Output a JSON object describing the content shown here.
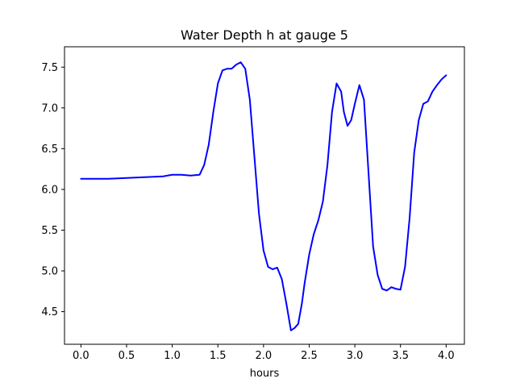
{
  "chart_data": {
    "type": "line",
    "title": "Water Depth h at gauge 5",
    "xlabel": "hours",
    "ylabel": "",
    "xlim": [
      -0.18,
      4.2
    ],
    "ylim": [
      4.1,
      7.75
    ],
    "xticks": [
      0.0,
      0.5,
      1.0,
      1.5,
      2.0,
      2.5,
      3.0,
      3.5,
      4.0
    ],
    "xtick_labels": [
      "0.0",
      "0.5",
      "1.0",
      "1.5",
      "2.0",
      "2.5",
      "3.0",
      "3.5",
      "4.0"
    ],
    "yticks": [
      4.5,
      5.0,
      5.5,
      6.0,
      6.5,
      7.0,
      7.5
    ],
    "ytick_labels": [
      "4.5",
      "5.0",
      "5.5",
      "6.0",
      "6.5",
      "7.0",
      "7.5"
    ],
    "grid": false,
    "line_color": "#0000ff",
    "series": [
      {
        "x": [
          0.0,
          0.3,
          0.5,
          0.7,
          0.9,
          1.0,
          1.1,
          1.2,
          1.3,
          1.35,
          1.4,
          1.45,
          1.5,
          1.55,
          1.6,
          1.65,
          1.7,
          1.75,
          1.8,
          1.85,
          1.9,
          1.95,
          2.0,
          2.05,
          2.1,
          2.15,
          2.2,
          2.25,
          2.3,
          2.34,
          2.38,
          2.42,
          2.45,
          2.5,
          2.55,
          2.6,
          2.65,
          2.7,
          2.75,
          2.8,
          2.85,
          2.88,
          2.92,
          2.96,
          3.0,
          3.05,
          3.1,
          3.15,
          3.2,
          3.25,
          3.3,
          3.35,
          3.4,
          3.45,
          3.5,
          3.55,
          3.6,
          3.65,
          3.7,
          3.75,
          3.8,
          3.85,
          3.9,
          3.95,
          4.0
        ],
        "y": [
          6.13,
          6.13,
          6.14,
          6.15,
          6.16,
          6.18,
          6.18,
          6.17,
          6.18,
          6.3,
          6.55,
          6.95,
          7.3,
          7.46,
          7.48,
          7.48,
          7.53,
          7.56,
          7.48,
          7.1,
          6.4,
          5.7,
          5.25,
          5.05,
          5.02,
          5.04,
          4.9,
          4.6,
          4.27,
          4.3,
          4.35,
          4.6,
          4.85,
          5.2,
          5.45,
          5.62,
          5.85,
          6.3,
          6.95,
          7.3,
          7.2,
          6.95,
          6.78,
          6.85,
          7.05,
          7.28,
          7.1,
          6.2,
          5.3,
          4.95,
          4.78,
          4.76,
          4.8,
          4.78,
          4.77,
          5.05,
          5.65,
          6.45,
          6.85,
          7.05,
          7.08,
          7.2,
          7.28,
          7.35,
          7.4
        ]
      }
    ]
  }
}
